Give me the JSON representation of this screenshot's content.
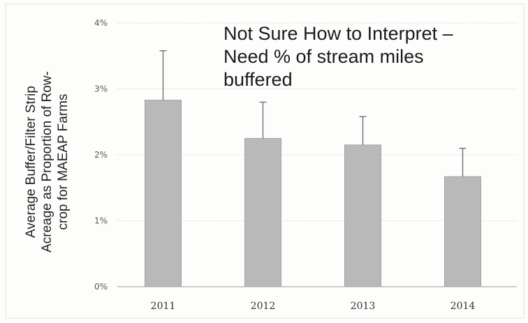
{
  "chart_data": {
    "type": "bar",
    "categories": [
      "2011",
      "2012",
      "2013",
      "2014"
    ],
    "values": [
      0.0283,
      0.0225,
      0.0215,
      0.0167
    ],
    "error_upper": [
      0.0358,
      0.028,
      0.0258,
      0.021
    ],
    "ylim": [
      0,
      0.04
    ],
    "yticks": [
      0,
      0.01,
      0.02,
      0.03,
      0.04
    ],
    "ytick_labels": [
      "0%",
      "1%",
      "2%",
      "3%",
      "4%"
    ],
    "ylabel_lines": [
      "Average Buffer/Filter Strip",
      "Acreage as Proportion of Row-",
      "crop for MAEAP Farms"
    ],
    "xlabel": "",
    "title": "",
    "grid": true,
    "legend": "none",
    "bar_color": "#b9b9b9",
    "annotation_lines": [
      "Not Sure How to Interpret –",
      "Need % of stream miles",
      "buffered"
    ]
  }
}
